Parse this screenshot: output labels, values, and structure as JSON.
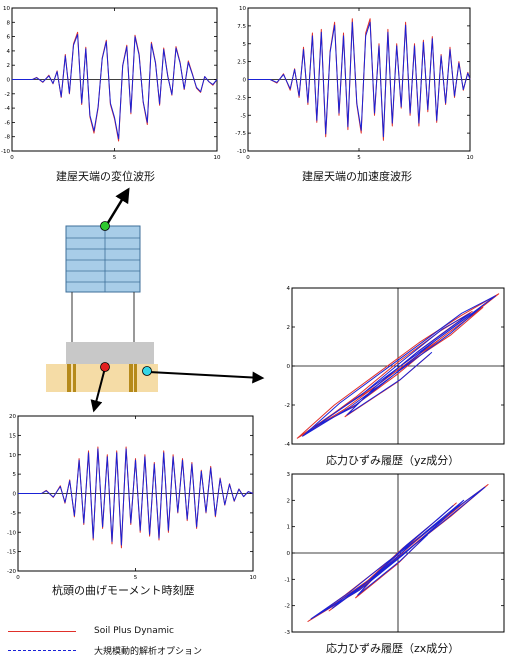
{
  "colors": {
    "red": "#e0302a",
    "blue": "#1a22d6",
    "frame": "#000000",
    "grid": "#cfcfcf",
    "building": "#a8cde8",
    "building_line": "#3d6e99",
    "soil": "#f5dca6",
    "foundation": "#c8c8c8",
    "pile": "#b68a1a",
    "green_dot": "#2ec82e",
    "red_dot": "#e32020",
    "cyan_dot": "#35d6e6"
  },
  "legend": [
    {
      "label": "Soil Plus Dynamic",
      "color": "#e0302a",
      "style": "solid"
    },
    {
      "label": "大規模動的解析オプション",
      "color": "#1a22d6",
      "style": "dashed"
    }
  ],
  "diagram": {
    "icons": [
      "building-icon",
      "foundation-icon",
      "pile-icon"
    ]
  },
  "chart_data": [
    {
      "id": "disp",
      "type": "line",
      "title": "建屋天端の変位波形",
      "xlim": [
        0,
        10
      ],
      "ylim": [
        -10,
        10
      ],
      "xticks": [
        0,
        5,
        10
      ],
      "xtick_labels": [
        "0",
        "5",
        "10"
      ],
      "yticks": [
        -10,
        -8,
        -6,
        -4,
        -2,
        0,
        2,
        4,
        6,
        8,
        10
      ],
      "ytick_labels": [
        "-10",
        "-8",
        "-6",
        "-4",
        "-2",
        "0",
        "2",
        "4",
        "6",
        "8",
        "10"
      ],
      "grid": false,
      "series": [
        {
          "color": "#e0302a",
          "x": [
            0,
            1,
            1.2,
            1.5,
            1.8,
            2,
            2.2,
            2.4,
            2.6,
            2.8,
            3,
            3.2,
            3.4,
            3.6,
            3.8,
            4,
            4.2,
            4.4,
            4.6,
            4.8,
            5,
            5.2,
            5.4,
            5.6,
            5.8,
            6,
            6.2,
            6.4,
            6.6,
            6.8,
            7,
            7.2,
            7.4,
            7.6,
            7.8,
            8,
            8.2,
            8.4,
            8.6,
            8.8,
            9,
            9.2,
            9.4,
            9.6,
            9.8,
            10
          ],
          "y": [
            0,
            0,
            0.3,
            -0.4,
            0.6,
            -0.6,
            1.2,
            -2.5,
            3.5,
            -2,
            5,
            6.6,
            -3.5,
            4.5,
            -5.2,
            -7.5,
            -4,
            3,
            5.5,
            -3.5,
            -5.5,
            -8.6,
            2,
            4.8,
            -4.8,
            6.2,
            3.6,
            -3.2,
            -6.3,
            5.2,
            2.4,
            -3.6,
            4.4,
            0.5,
            -2.2,
            4.6,
            2.4,
            -1.4,
            2.6,
            0.8,
            -1.2,
            -1.8,
            0.4,
            -0.3,
            -0.8,
            0
          ]
        },
        {
          "color": "#1a22d6",
          "x": [
            0,
            1,
            1.2,
            1.5,
            1.8,
            2,
            2.2,
            2.4,
            2.6,
            2.8,
            3,
            3.2,
            3.4,
            3.6,
            3.8,
            4,
            4.2,
            4.4,
            4.6,
            4.8,
            5,
            5.2,
            5.4,
            5.6,
            5.8,
            6,
            6.2,
            6.4,
            6.6,
            6.8,
            7,
            7.2,
            7.4,
            7.6,
            7.8,
            8,
            8.2,
            8.4,
            8.6,
            8.8,
            9,
            9.2,
            9.4,
            9.6,
            9.8,
            10
          ],
          "y": [
            0,
            0,
            0.25,
            -0.35,
            0.5,
            -0.55,
            1.1,
            -2.4,
            3.3,
            -1.9,
            4.8,
            6.3,
            -3.3,
            4.3,
            -5,
            -7.2,
            -3.8,
            2.9,
            5.3,
            -3.3,
            -5.3,
            -8.3,
            1.9,
            4.6,
            -4.6,
            6,
            3.4,
            -3.1,
            -6,
            5,
            2.3,
            -3.4,
            4.2,
            0.4,
            -2.1,
            4.4,
            2.3,
            -1.3,
            2.4,
            0.7,
            -1.1,
            -1.7,
            0.4,
            -0.3,
            -0.7,
            0
          ]
        }
      ]
    },
    {
      "id": "accel",
      "type": "line",
      "title": "建屋天端の加速度波形",
      "xlim": [
        0,
        10
      ],
      "ylim": [
        -10,
        10
      ],
      "xticks": [
        0,
        5,
        10
      ],
      "xtick_labels": [
        "0",
        "5",
        "10"
      ],
      "yticks": [
        -10,
        -7.5,
        -5,
        -2.5,
        0,
        2.5,
        5,
        7.5,
        10
      ],
      "ytick_labels": [
        "-10",
        "-7.5",
        "-5",
        "-2.5",
        "0",
        "2.5",
        "5",
        "7.5",
        "10"
      ],
      "grid": false,
      "series": [
        {
          "color": "#e0302a",
          "x": [
            0,
            1,
            1.3,
            1.6,
            1.9,
            2.1,
            2.3,
            2.5,
            2.7,
            2.9,
            3.1,
            3.3,
            3.5,
            3.7,
            3.9,
            4.1,
            4.3,
            4.5,
            4.7,
            4.9,
            5.1,
            5.3,
            5.5,
            5.7,
            5.9,
            6.1,
            6.3,
            6.5,
            6.7,
            6.9,
            7.1,
            7.3,
            7.5,
            7.7,
            7.9,
            8.1,
            8.3,
            8.5,
            8.7,
            8.9,
            9.1,
            9.3,
            9.5,
            9.7,
            9.9,
            10
          ],
          "y": [
            0,
            0,
            -0.5,
            0.8,
            -1.5,
            1.5,
            -2.5,
            4.5,
            -3.5,
            6.5,
            -6,
            7,
            -8,
            4,
            8,
            -5,
            6.5,
            -7,
            8.5,
            -3.5,
            -7.5,
            6.5,
            8.5,
            -5,
            5,
            -8.5,
            7,
            -6.5,
            5,
            -4,
            8,
            -5,
            5,
            -6.5,
            5.5,
            -4.5,
            6,
            -6,
            3.5,
            -3.5,
            4.5,
            -2.5,
            2.5,
            -1.5,
            1,
            0
          ]
        },
        {
          "color": "#1a22d6",
          "x": [
            0,
            1,
            1.3,
            1.6,
            1.9,
            2.1,
            2.3,
            2.5,
            2.7,
            2.9,
            3.1,
            3.3,
            3.5,
            3.7,
            3.9,
            4.1,
            4.3,
            4.5,
            4.7,
            4.9,
            5.1,
            5.3,
            5.5,
            5.7,
            5.9,
            6.1,
            6.3,
            6.5,
            6.7,
            6.9,
            7.1,
            7.3,
            7.5,
            7.7,
            7.9,
            8.1,
            8.3,
            8.5,
            8.7,
            8.9,
            9.1,
            9.3,
            9.5,
            9.7,
            9.9,
            10
          ],
          "y": [
            0,
            0,
            -0.4,
            0.7,
            -1.3,
            1.4,
            -2.3,
            4.2,
            -3.2,
            6.1,
            -5.7,
            6.6,
            -7.6,
            3.8,
            7.6,
            -4.7,
            6.1,
            -6.6,
            8,
            -3.3,
            -7.1,
            6.1,
            8,
            -4.7,
            4.7,
            -8,
            6.6,
            -6.1,
            4.7,
            -3.8,
            7.6,
            -4.7,
            4.7,
            -6.1,
            5.2,
            -4.2,
            5.7,
            -5.7,
            3.3,
            -3.3,
            4.2,
            -2.3,
            2.3,
            -1.4,
            0.9,
            0
          ]
        }
      ]
    },
    {
      "id": "moment",
      "type": "line",
      "title": "杭頭の曲げモーメント時刻歴",
      "xlim": [
        0,
        10
      ],
      "ylim": [
        -20,
        20
      ],
      "xticks": [
        0,
        5,
        10
      ],
      "xtick_labels": [
        "0",
        "5",
        "10"
      ],
      "yticks": [
        -20,
        -15,
        -10,
        -5,
        0,
        5,
        10,
        15,
        20
      ],
      "ytick_labels": [
        "-20",
        "-15",
        "-10",
        "-5",
        "0",
        "5",
        "10",
        "15",
        "20"
      ],
      "grid": false,
      "series": [
        {
          "color": "#e0302a",
          "x": [
            0,
            1,
            1.2,
            1.5,
            1.8,
            2,
            2.2,
            2.4,
            2.6,
            2.8,
            3,
            3.2,
            3.4,
            3.6,
            3.8,
            4,
            4.2,
            4.4,
            4.6,
            4.8,
            5,
            5.2,
            5.4,
            5.6,
            5.8,
            6,
            6.2,
            6.4,
            6.6,
            6.8,
            7,
            7.2,
            7.4,
            7.6,
            7.8,
            8,
            8.2,
            8.4,
            8.6,
            8.8,
            9,
            9.2,
            9.4,
            9.6,
            9.8,
            10
          ],
          "y": [
            0,
            0,
            0.8,
            -1,
            2,
            -2.5,
            3.5,
            -6,
            9,
            -8,
            11,
            -12,
            12,
            -9,
            10,
            -13,
            11,
            -14,
            12,
            -8,
            9,
            -10,
            10,
            -11,
            8,
            -12,
            11,
            -10,
            10,
            -5,
            9,
            -7,
            8,
            -9,
            6,
            -5,
            7,
            -6,
            4,
            -3,
            2.5,
            -2,
            1.2,
            -0.8,
            0.5,
            0
          ]
        },
        {
          "color": "#1a22d6",
          "x": [
            0,
            1,
            1.2,
            1.5,
            1.8,
            2,
            2.2,
            2.4,
            2.6,
            2.8,
            3,
            3.2,
            3.4,
            3.6,
            3.8,
            4,
            4.2,
            4.4,
            4.6,
            4.8,
            5,
            5.2,
            5.4,
            5.6,
            5.8,
            6,
            6.2,
            6.4,
            6.6,
            6.8,
            7,
            7.2,
            7.4,
            7.6,
            7.8,
            8,
            8.2,
            8.4,
            8.6,
            8.8,
            9,
            9.2,
            9.4,
            9.6,
            9.8,
            10
          ],
          "y": [
            0,
            0,
            0.7,
            -0.9,
            1.8,
            -2.3,
            3.3,
            -5.7,
            8.6,
            -7.6,
            10.5,
            -11.5,
            11.5,
            -8.6,
            9.5,
            -12.4,
            10.5,
            -13.3,
            11.5,
            -7.6,
            8.6,
            -9.5,
            9.5,
            -10.5,
            7.6,
            -11.5,
            10.5,
            -9.5,
            9.5,
            -4.8,
            8.6,
            -6.6,
            7.6,
            -8.6,
            5.7,
            -4.8,
            6.6,
            -5.7,
            3.8,
            -2.9,
            2.4,
            -1.9,
            1.1,
            -0.8,
            0.5,
            0
          ]
        }
      ]
    },
    {
      "id": "hyst_yz",
      "type": "line",
      "title": "応力ひずみ履歴（yz成分）",
      "xlim": [
        -1,
        1
      ],
      "ylim": [
        -4,
        4
      ],
      "xticks": [],
      "xtick_labels": [],
      "yticks": [
        -4,
        -2,
        0,
        2,
        4
      ],
      "ytick_labels": [
        "-4",
        "-2",
        "0",
        "2",
        "4"
      ],
      "grid": false,
      "series": [
        {
          "color": "#e0302a",
          "x": [
            -0.95,
            -0.6,
            -0.2,
            0.2,
            0.6,
            0.95,
            0.6,
            0.2,
            -0.2,
            -0.6,
            -0.95,
            -0.5,
            0,
            0.5,
            0.8,
            0.4,
            0,
            -0.4,
            -0.8,
            -0.4,
            0,
            0.4,
            0.7,
            0.2,
            -0.2,
            -0.5,
            0,
            0.3
          ],
          "y": [
            -3.7,
            -2,
            -0.4,
            1.2,
            2.6,
            3.7,
            2.2,
            0.6,
            -1,
            -2.4,
            -3.7,
            -2.2,
            -0.2,
            1.6,
            3,
            1.4,
            -0.4,
            -2,
            -3.2,
            -1.6,
            0.2,
            1.8,
            2.8,
            0.8,
            -1,
            -2.6,
            -0.8,
            0.6
          ]
        },
        {
          "color": "#1a22d6",
          "x": [
            -0.9,
            -0.55,
            -0.15,
            0.25,
            0.6,
            0.92,
            0.55,
            0.15,
            -0.25,
            -0.62,
            -0.9,
            -0.45,
            0.05,
            0.5,
            0.78,
            0.35,
            -0.05,
            -0.42,
            -0.78,
            -0.35,
            0.05,
            0.42,
            0.68,
            0.18,
            -0.22,
            -0.48,
            0.02,
            0.32
          ],
          "y": [
            -3.6,
            -1.9,
            -0.3,
            1.3,
            2.7,
            3.6,
            2.1,
            0.5,
            -1.1,
            -2.5,
            -3.6,
            -2.1,
            -0.1,
            1.7,
            3,
            1.3,
            -0.5,
            -2.1,
            -3.1,
            -1.5,
            0.3,
            1.9,
            2.7,
            0.7,
            -1.1,
            -2.5,
            -0.7,
            0.7
          ]
        }
      ]
    },
    {
      "id": "hyst_zx",
      "type": "line",
      "title": "応力ひずみ履歴（zx成分）",
      "xlim": [
        -1,
        1
      ],
      "ylim": [
        -3,
        3
      ],
      "xticks": [],
      "xtick_labels": [],
      "yticks": [
        -3,
        -2,
        -1,
        0,
        1,
        2,
        3
      ],
      "ytick_labels": [
        "-3",
        "-2",
        "-1",
        "0",
        "1",
        "2",
        "3"
      ],
      "grid": false,
      "series": [
        {
          "color": "#e0302a",
          "x": [
            -0.85,
            -0.5,
            -0.15,
            0.2,
            0.55,
            0.85,
            0.5,
            0.15,
            -0.2,
            -0.55,
            -0.85,
            -0.4,
            0,
            0.35,
            0.65,
            0.3,
            -0.05,
            -0.35,
            -0.65,
            -0.3,
            0.05,
            0.35,
            0.55,
            0.15,
            -0.15,
            -0.4,
            0,
            0.25
          ],
          "y": [
            -2.6,
            -1.6,
            -0.5,
            0.6,
            1.7,
            2.6,
            1.4,
            0.3,
            -0.8,
            -1.8,
            -2.6,
            -1.5,
            -0.2,
            1,
            2,
            0.9,
            -0.3,
            -1.3,
            -2.2,
            -1.1,
            0.2,
            1.2,
            1.9,
            0.5,
            -0.6,
            -1.7,
            -0.4,
            0.6
          ]
        },
        {
          "color": "#1a22d6",
          "x": [
            -0.82,
            -0.46,
            -0.12,
            0.24,
            0.58,
            0.82,
            0.46,
            0.12,
            -0.22,
            -0.58,
            -0.82,
            -0.36,
            0.04,
            0.38,
            0.62,
            0.26,
            -0.08,
            -0.38,
            -0.62,
            -0.26,
            0.08,
            0.38,
            0.52,
            0.12,
            -0.18,
            -0.38,
            0.02,
            0.28
          ],
          "y": [
            -2.5,
            -1.5,
            -0.4,
            0.7,
            1.8,
            2.5,
            1.3,
            0.2,
            -0.9,
            -1.9,
            -2.5,
            -1.4,
            -0.1,
            1.1,
            2,
            0.8,
            -0.4,
            -1.4,
            -2.1,
            -1,
            0.3,
            1.3,
            1.8,
            0.4,
            -0.7,
            -1.6,
            -0.3,
            0.7
          ]
        }
      ]
    }
  ]
}
